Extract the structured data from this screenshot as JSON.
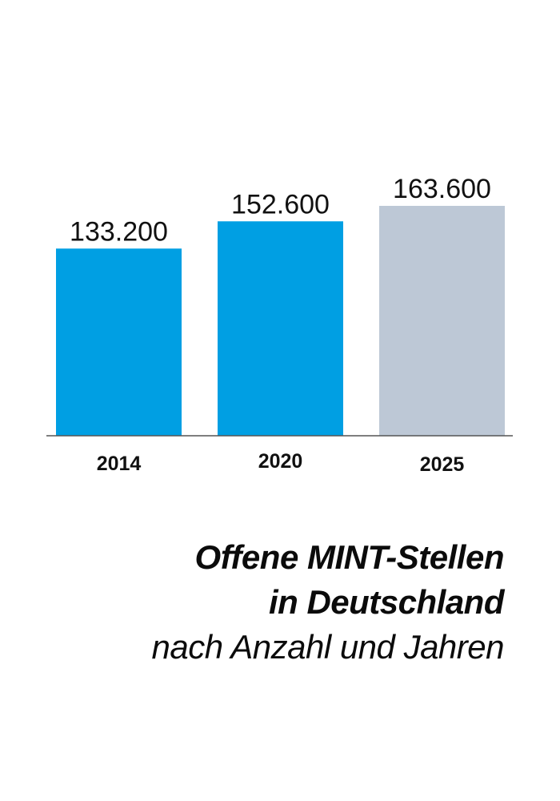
{
  "chart_data": {
    "type": "bar",
    "categories": [
      "2014",
      "2020",
      "2025"
    ],
    "values": [
      133200,
      152600,
      163600
    ],
    "value_labels": [
      "133.200",
      "152.600",
      "163.600"
    ],
    "colors": [
      "#009fe3",
      "#009fe3",
      "#bdc8d6"
    ],
    "ylim": [
      0,
      180000
    ],
    "grid": false,
    "title": "Offene MINT-Stellen in Deutschland",
    "title_lines": [
      "Offene MINT-Stellen",
      "in Deutschland"
    ],
    "subtitle": "nach Anzahl und Jahren"
  }
}
